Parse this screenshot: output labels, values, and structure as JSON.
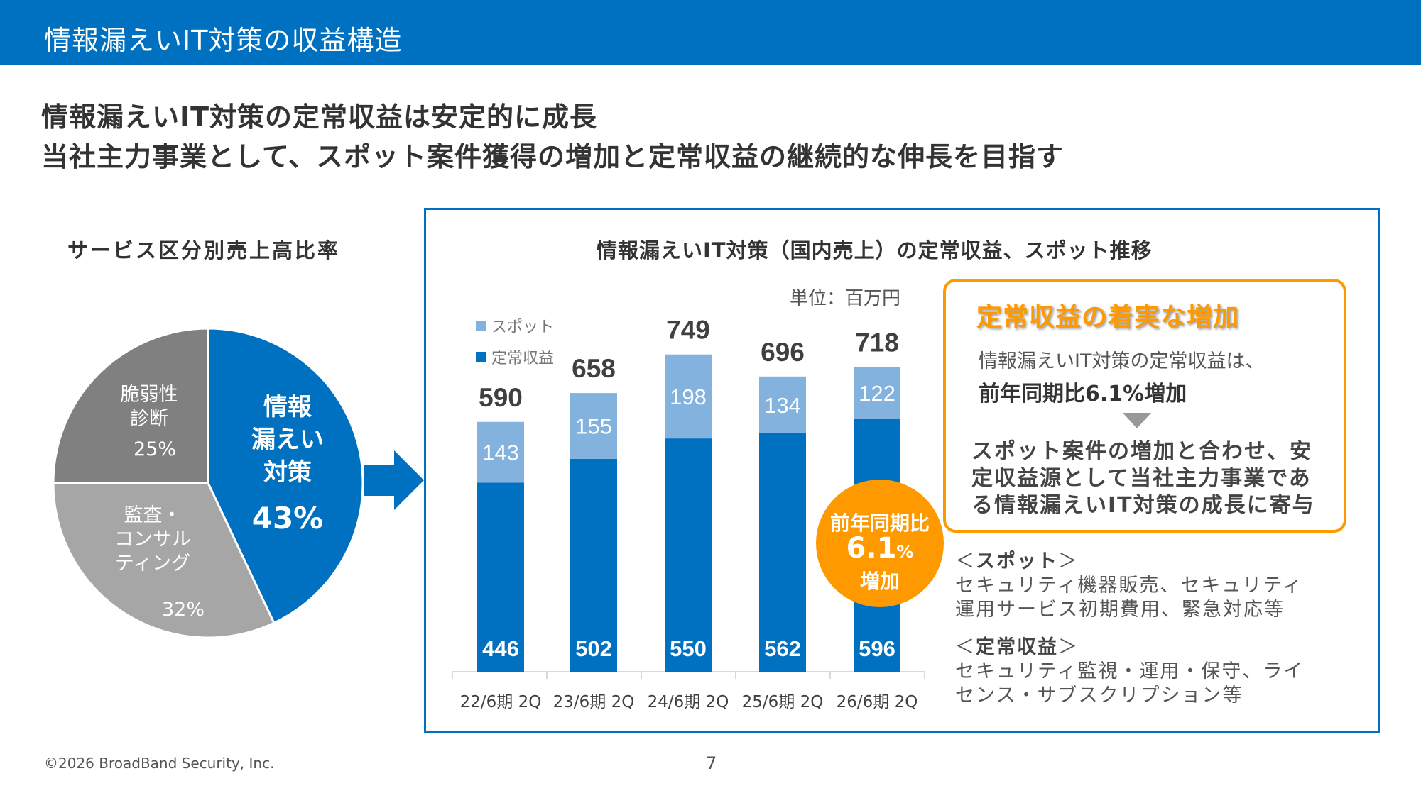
{
  "header": {
    "title": "情報漏えいIT対策の収益構造"
  },
  "headline": {
    "line1": "情報漏えいIT対策の定常収益は安定的に成長",
    "line2": "当社主力事業として、スポット案件獲得の増加と定常収益の継続的な伸長を目指す"
  },
  "colors": {
    "brand": "#0070C0",
    "spot": "#83B2DE",
    "regular": "#0070C0",
    "accent": "#FF9900",
    "dark_gray": "#808080",
    "light_gray": "#A6A6A6"
  },
  "chart_data": [
    {
      "type": "pie",
      "title": "サービス区分別売上高比率",
      "slices": [
        {
          "label_lines": [
            "情報",
            "漏えい",
            "対策"
          ],
          "label": "情報漏えい対策",
          "value": 43,
          "value_label": "43%",
          "color": "#0070C0"
        },
        {
          "label_lines": [
            "監査・",
            "コンサル",
            "ティング"
          ],
          "label": "監査・コンサルティング",
          "value": 32,
          "value_label": "32%",
          "color": "#A6A6A6"
        },
        {
          "label_lines": [
            "脆弱性",
            "診断"
          ],
          "label": "脆弱性診断",
          "value": 25,
          "value_label": "25%",
          "color": "#808080"
        }
      ]
    },
    {
      "type": "bar",
      "stacked": true,
      "title": "情報漏えいIT対策（国内売上）の定常収益、スポット推移",
      "unit_label": "単位：百万円",
      "categories": [
        "22/6期 2Q",
        "23/6期 2Q",
        "24/6期 2Q",
        "25/6期 2Q",
        "26/6期 2Q"
      ],
      "series": [
        {
          "name": "定常収益",
          "values": [
            446,
            502,
            550,
            562,
            596
          ],
          "color": "#0070C0"
        },
        {
          "name": "スポット",
          "values": [
            143,
            155,
            198,
            134,
            122
          ],
          "color": "#83B2DE"
        }
      ],
      "totals": [
        590,
        658,
        749,
        696,
        718
      ],
      "legend": [
        "スポット",
        "定常収益"
      ],
      "legend_position": "top-left",
      "ylim": [
        0,
        800
      ]
    }
  ],
  "badge": {
    "line1": "前年同期比",
    "value": "6.1",
    "unit": "%",
    "line3": "増加"
  },
  "callout": {
    "title": "定常収益の着実な増加",
    "line1": "情報漏えいIT対策の定常収益は、",
    "line2": "前年同期比6.1%増加",
    "body": "スポット案件の増加と合わせ、安定収益源として当社主力事業である情報漏えいIT対策の成長に寄与"
  },
  "definitions": [
    {
      "open": "＜",
      "title": "スポット",
      "close": "＞",
      "text_lines": [
        "セキュリティ機器販売、セキュリティ",
        "運用サービス初期費用、緊急対応等"
      ]
    },
    {
      "open": "＜",
      "title": "定常収益",
      "close": "＞",
      "text_lines": [
        "セキュリティ監視・運用・保守、ライ",
        "センス・サブスクリプション等"
      ]
    }
  ],
  "footer": {
    "copyright": "©2026 BroadBand Security, Inc.",
    "page": "7"
  }
}
